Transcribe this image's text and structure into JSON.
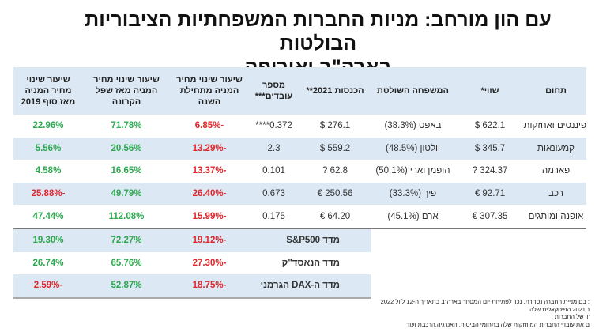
{
  "title": {
    "line1": "עם הון מורחב: מניות החברות המשפחתיות הציבוריות הבולטות",
    "line2": "בארה\"ב ואירופה"
  },
  "table": {
    "headers": [
      "תחום",
      "שווי*",
      "המשפחה השולטת",
      "הכנסות 2021**",
      "מספר עובדים***",
      "שיעור שינוי מחיר המניה מתחילת השנה",
      "שיעור שינוי מחיר המניה מאז שפל הקרונה",
      "שיעור שינוי מחיר המניה מאז סוף 2019"
    ],
    "rows": [
      [
        "פיננסים ואחזקות",
        "622.1 $",
        "באפט (38.3%)",
        "276.1 $",
        "0.372****",
        "-6.85%",
        "71.78%",
        "22.96%"
      ],
      [
        "קמעונאות",
        "345.7 $",
        "וולטון (48.5%)",
        "559.2 $",
        "2.3",
        "-13.29%",
        "20.56%",
        "5.56%"
      ],
      [
        "פארמה",
        "324.37 ?",
        "הופמן וארי (50.1%)",
        "62.8 ?",
        "0.101",
        "-13.37%",
        "16.65%",
        "4.58%"
      ],
      [
        "רכב",
        "92.71 €",
        "פיך (33.3%)",
        "250.56 €",
        "0.673",
        "-26.40%",
        "49.79%",
        "-25.88%"
      ],
      [
        "אופנה ומותגים",
        "307.35 €",
        "ארם (45.1%)",
        "64.20 €",
        "0.175",
        "-15.99%",
        "112.08%",
        "47.44%"
      ]
    ],
    "indices": [
      [
        "מדד S&P500",
        "-19.12%",
        "72.27%",
        "19.30%"
      ],
      [
        "מדד הנאסד\"ק",
        "-27.30%",
        "65.76%",
        "26.74%"
      ],
      [
        "מדד ה-DAX הגרמני",
        "-18.75%",
        "52.87%",
        "-2.59%"
      ]
    ]
  },
  "footnotes": [
    ": בם מניית החברה נסחרת. נכון לפתיחת יום המסחר בארה\"ב בתאריך ה-12 ליול 2022",
    "נ 2021 הפיסקאלית שלה",
    "'ון של החברות",
    "ם את עובדי החברות המוחזקות שלה בתחומי הביטוח, האנרגיה,הרכבת ועוד"
  ],
  "colors": {
    "header_bg": "#dce9f5",
    "positive": "#2ea84f",
    "negative": "#e0262b"
  }
}
